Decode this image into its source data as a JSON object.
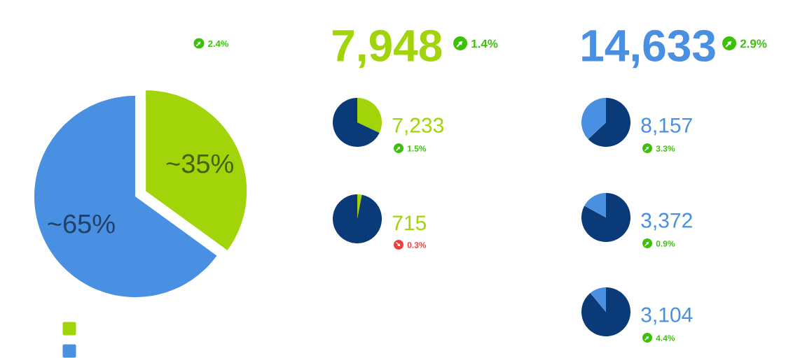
{
  "chart_data": [
    {
      "type": "pie",
      "categories": [
        null,
        null
      ],
      "values": [
        35,
        65
      ],
      "colors": [
        "#a2d40a",
        "#4a90e2"
      ],
      "value_labels": [
        "~35%",
        "~65%"
      ],
      "annotations": [
        "2.4%"
      ]
    },
    {
      "type": "other",
      "title": "7,948",
      "color": "#a2d40a",
      "annotations": [
        "1.4%"
      ]
    },
    {
      "type": "other",
      "title": "14,633",
      "color": "#4a90e2",
      "annotations": [
        "2.9%"
      ]
    },
    {
      "type": "pie",
      "title": "7,233",
      "categories": [
        null,
        null
      ],
      "values": [
        32,
        68
      ],
      "colors": [
        "#a2d40a",
        "#0b3a78"
      ],
      "annotations": [
        "1.5%"
      ]
    },
    {
      "type": "pie",
      "title": "715",
      "categories": [
        null,
        null
      ],
      "values": [
        3,
        97
      ],
      "colors": [
        "#a2d40a",
        "#0b3a78"
      ],
      "annotations": [
        "0.3%"
      ]
    },
    {
      "type": "pie",
      "title": "8,157",
      "categories": [
        null,
        null
      ],
      "values": [
        63,
        37
      ],
      "colors": [
        "#0b3a78",
        "#4a90e2"
      ],
      "annotations": [
        "3.3%"
      ]
    },
    {
      "type": "pie",
      "title": "3,372",
      "categories": [
        null,
        null
      ],
      "values": [
        83,
        17
      ],
      "colors": [
        "#0b3a78",
        "#4a90e2"
      ],
      "annotations": [
        "0.9%"
      ]
    },
    {
      "type": "pie",
      "title": "3,104",
      "categories": [
        null,
        null
      ],
      "values": [
        89,
        11
      ],
      "colors": [
        "#0b3a78",
        "#4a90e2"
      ],
      "annotations": [
        "4.4%"
      ]
    }
  ]
}
